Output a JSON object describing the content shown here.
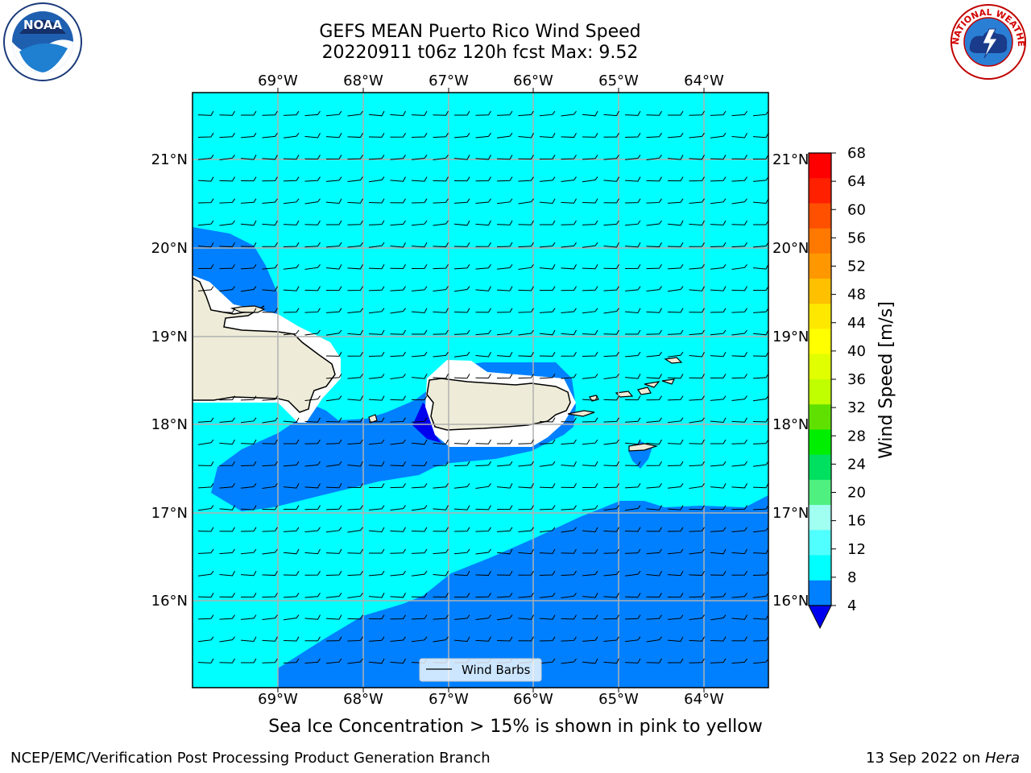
{
  "title": {
    "line1": "GEFS MEAN Puerto Rico Wind Speed",
    "line2": "20220911 t06z 120h fcst   Max: 9.52"
  },
  "map": {
    "lon_ticks": [
      "69°W",
      "68°W",
      "67°W",
      "66°W",
      "65°W",
      "64°W"
    ],
    "lat_ticks": [
      "21°N",
      "20°N",
      "19°N",
      "18°N",
      "17°N",
      "16°N"
    ],
    "legend_label": "Wind Barbs",
    "colors": {
      "ocean_fast": "#00ffff",
      "ocean_slow": "#0080ff",
      "ocean_min": "#0000ee",
      "land": "#eeecd8",
      "grid": "#b0b0b0"
    }
  },
  "colorbar": {
    "label": "Wind Speed [m/s]",
    "ticks": [
      "68",
      "64",
      "60",
      "56",
      "52",
      "48",
      "44",
      "40",
      "36",
      "32",
      "28",
      "24",
      "20",
      "16",
      "12",
      "8",
      "4"
    ],
    "colors": [
      "#ff0000",
      "#ff2000",
      "#ff5000",
      "#ff7800",
      "#ff9800",
      "#ffc000",
      "#ffe800",
      "#ffff00",
      "#e0ff00",
      "#c0ff00",
      "#60e000",
      "#00ee00",
      "#00e060",
      "#50f080",
      "#a0fff0",
      "#50ffff",
      "#00ffff",
      "#0080ff"
    ],
    "extend_color": "#0000ee"
  },
  "caption": "Sea Ice Concentration > 15% is shown in pink to yellow",
  "footer": {
    "left": "NCEP/EMC/Verification Post Processing Product Generation Branch",
    "right_prefix": "13 Sep 2022 on ",
    "right_machine": "Hera"
  },
  "logos": {
    "noaa_text": "NOAA",
    "nws_text": "NATIONAL WEATHER SERVICE"
  }
}
